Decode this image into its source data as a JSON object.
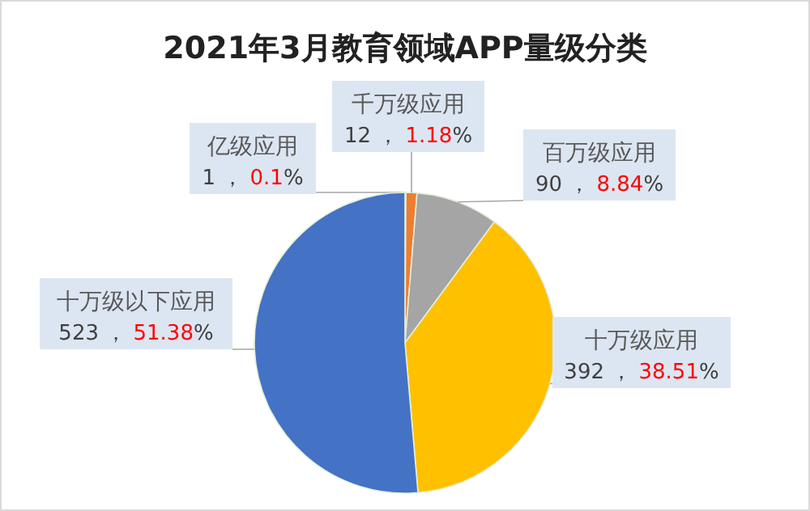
{
  "chart_data": {
    "type": "pie",
    "title": "2021年3月教育领域APP量级分类",
    "categories": [
      "亿级应用",
      "千万级应用",
      "百万级应用",
      "十万级应用",
      "十万级以下应用"
    ],
    "values": [
      1,
      12,
      90,
      392,
      523
    ],
    "colors": [
      "#5b9bd5",
      "#ed7d31",
      "#a5a5a5",
      "#ffc000",
      "#4472c4"
    ],
    "value_labels": [
      "1 ， 0.1%",
      "12 ， 1.18%",
      "90 ， 8.84%",
      "392 ， 38.51%",
      "523 ， 51.38%"
    ]
  }
}
